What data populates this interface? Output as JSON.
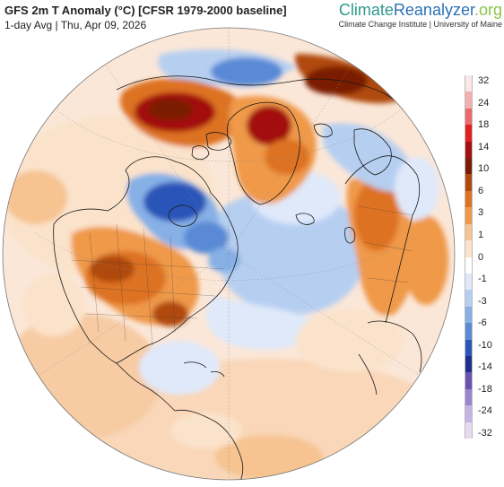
{
  "header": {
    "title": "GFS 2m T Anomaly (°C) [CFSR 1979-2000 baseline]",
    "subtitle": "1-day Avg | Thu, Apr 09, 2026"
  },
  "brand": {
    "name_part1": "Climate",
    "name_part2": "Reanalyzer",
    "name_part3": ".org",
    "affiliation": "Climate Change Institute | University of Maine"
  },
  "legend": {
    "colors": [
      "#fbe7e7",
      "#f4b0b0",
      "#ec6a6a",
      "#e0201f",
      "#a31010",
      "#7a1c06",
      "#b0490e",
      "#dd7220",
      "#ef9948",
      "#f6c391",
      "#fbe3cb",
      "#ffffff",
      "#dfe9fa",
      "#b6cff1",
      "#86b0e6",
      "#5a8ad6",
      "#2c55b8",
      "#1f2f8c",
      "#6a52b0",
      "#9a86cf",
      "#c4b6e4",
      "#e6dcf2"
    ],
    "labels": [
      "32",
      "24",
      "18",
      "14",
      "10",
      "6",
      "3",
      "1",
      "0",
      "-1",
      "-3",
      "-6",
      "-10",
      "-14",
      "-18",
      "-24",
      "-32"
    ]
  },
  "map": {
    "ocean_color": "#f4f2f0",
    "border_color": "#1a1a1a",
    "graticule_color": "#9a9a9a"
  }
}
